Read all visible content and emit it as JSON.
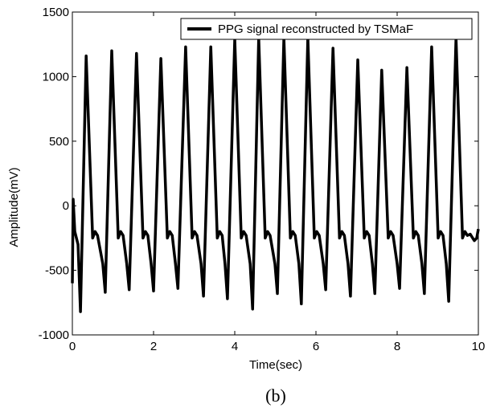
{
  "chart_data": {
    "type": "line",
    "xlabel": "Time(sec)",
    "ylabel": "Amplitude(mV)",
    "caption": "(b)",
    "xlim": [
      0,
      10
    ],
    "xticks": [
      0,
      2,
      4,
      6,
      8,
      10
    ],
    "ylim": [
      -1000,
      1500
    ],
    "yticks": [
      -1000,
      -500,
      0,
      500,
      1000,
      1500
    ],
    "legend": "upper right",
    "series": [
      {
        "name": "PPG signal reconstructed by TSMaF",
        "color": "#000000",
        "x": [
          0,
          0.02,
          0.06,
          0.14,
          0.2,
          0.34,
          0.5,
          0.56,
          0.62,
          0.75,
          0.81,
          0.97,
          1.13,
          1.19,
          1.25,
          1.34,
          1.4,
          1.58,
          1.74,
          1.8,
          1.86,
          1.94,
          2.0,
          2.18,
          2.34,
          2.4,
          2.46,
          2.54,
          2.6,
          2.79,
          2.95,
          3.01,
          3.07,
          3.17,
          3.23,
          3.41,
          3.57,
          3.63,
          3.69,
          3.76,
          3.82,
          4.0,
          4.16,
          4.22,
          4.28,
          4.38,
          4.44,
          4.59,
          4.75,
          4.81,
          4.87,
          4.99,
          5.05,
          5.21,
          5.37,
          5.43,
          5.49,
          5.58,
          5.64,
          5.8,
          5.96,
          6.02,
          6.08,
          6.18,
          6.24,
          6.42,
          6.58,
          6.64,
          6.7,
          6.79,
          6.85,
          7.03,
          7.19,
          7.25,
          7.31,
          7.39,
          7.45,
          7.62,
          7.78,
          7.84,
          7.9,
          8.0,
          8.06,
          8.24,
          8.4,
          8.46,
          8.52,
          8.61,
          8.67,
          8.85,
          9.01,
          9.07,
          9.13,
          9.21,
          9.27,
          9.45,
          9.61,
          9.67,
          9.73,
          9.8,
          9.9,
          9.96,
          10
        ],
        "values": [
          -600,
          50,
          -200,
          -300,
          -820,
          1160,
          -250,
          -200,
          -230,
          -450,
          -670,
          1200,
          -250,
          -200,
          -230,
          -450,
          -650,
          1180,
          -250,
          -200,
          -230,
          -450,
          -660,
          1140,
          -250,
          -200,
          -230,
          -450,
          -640,
          1230,
          -250,
          -200,
          -230,
          -450,
          -700,
          1230,
          -250,
          -200,
          -230,
          -450,
          -720,
          1290,
          -250,
          -200,
          -230,
          -450,
          -800,
          1300,
          -250,
          -200,
          -230,
          -450,
          -680,
          1300,
          -250,
          -200,
          -230,
          -450,
          -760,
          1300,
          -250,
          -200,
          -230,
          -450,
          -650,
          1220,
          -250,
          -200,
          -230,
          -450,
          -700,
          1130,
          -250,
          -200,
          -230,
          -450,
          -680,
          1050,
          -250,
          -200,
          -230,
          -450,
          -640,
          1070,
          -250,
          -200,
          -230,
          -450,
          -680,
          1230,
          -250,
          -200,
          -230,
          -450,
          -740,
          1300,
          -250,
          -200,
          -230,
          -220,
          -270,
          -250,
          -180
        ]
      }
    ]
  }
}
